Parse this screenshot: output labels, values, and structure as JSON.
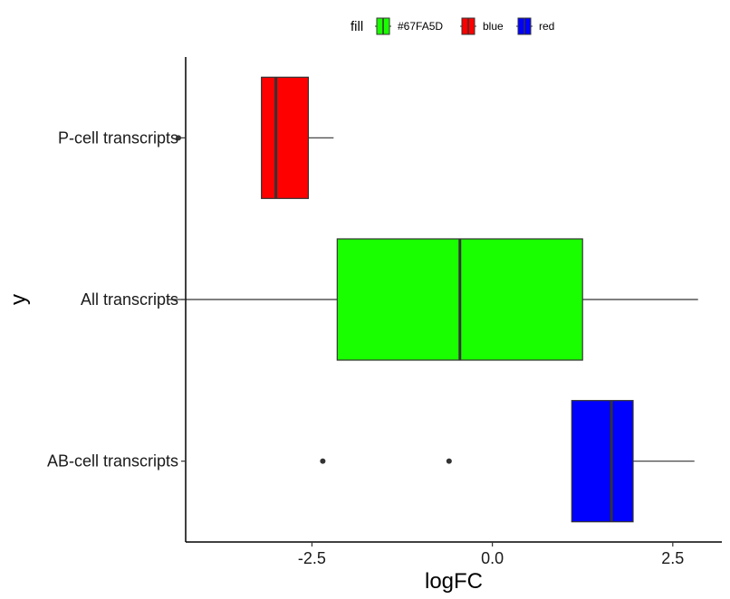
{
  "chart_data": {
    "type": "boxplot",
    "orientation": "horizontal",
    "xlabel": "logFC",
    "ylabel": "y",
    "xlim": [
      -4.25,
      3.18
    ],
    "x_ticks": [
      -2.5,
      0.0,
      2.5
    ],
    "x_tick_labels": [
      "-2.5",
      "0.0",
      "2.5"
    ],
    "grid": false,
    "legend": {
      "position": "top",
      "title": "fill",
      "entries": [
        {
          "label": "#67FA5D",
          "color": "#1aff00"
        },
        {
          "label": "blue",
          "color": "#ff0000"
        },
        {
          "label": "red",
          "color": "#0000ff"
        }
      ]
    },
    "categories": [
      "P-cell transcripts",
      "All transcripts",
      "AB-cell transcripts"
    ],
    "boxes": [
      {
        "category": "P-cell transcripts",
        "color": "#ff0000",
        "whisker_low": -3.2,
        "q1": -3.2,
        "median": -3.0,
        "q3": -2.55,
        "whisker_high": -2.2,
        "outliers": [
          -4.35
        ]
      },
      {
        "category": "All transcripts",
        "color": "#1aff00",
        "whisker_low": -4.5,
        "q1": -2.15,
        "median": -0.45,
        "q3": 1.25,
        "whisker_high": 2.85,
        "outliers": []
      },
      {
        "category": "AB-cell transcripts",
        "color": "#0000ff",
        "whisker_low": 1.1,
        "q1": 1.1,
        "median": 1.65,
        "q3": 1.95,
        "whisker_high": 2.8,
        "outliers": [
          -2.35,
          -0.6
        ]
      }
    ]
  }
}
